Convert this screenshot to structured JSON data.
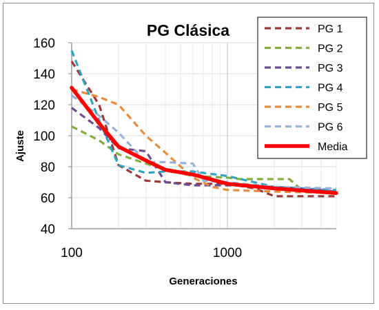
{
  "chart_data": {
    "type": "line",
    "title": "PG Clásica",
    "xlabel": "Generaciones",
    "ylabel": "Ajuste",
    "x_scale": "log",
    "xlim": [
      100,
      5000
    ],
    "ylim": [
      40,
      160
    ],
    "y_ticks": [
      40,
      60,
      80,
      100,
      120,
      140,
      160
    ],
    "x_ticks": [
      100,
      1000
    ],
    "x_tick_labels": [
      "100",
      "1000"
    ],
    "grid": true,
    "legend_position": "right",
    "series": [
      {
        "name": "PG 1",
        "color": "#9b3b38",
        "style": "dashed",
        "x": [
          100,
          150,
          200,
          300,
          400,
          600,
          1000,
          1500,
          2000,
          3000,
          5000
        ],
        "y": [
          148,
          120,
          81,
          71,
          70,
          69,
          69,
          66,
          61,
          61,
          61
        ]
      },
      {
        "name": "PG 2",
        "color": "#86ab3f",
        "style": "dashed",
        "x": [
          100,
          150,
          200,
          300,
          400,
          600,
          1000,
          1200,
          2000,
          2500,
          3000,
          5000
        ],
        "y": [
          106,
          97,
          88,
          82,
          78,
          74,
          73,
          72,
          72,
          72,
          65,
          64
        ]
      },
      {
        "name": "PG 3",
        "color": "#6a4c8f",
        "style": "dashed",
        "x": [
          100,
          150,
          200,
          300,
          400,
          600,
          1000,
          2000,
          3000,
          5000
        ],
        "y": [
          118,
          105,
          92,
          90,
          70,
          68,
          68,
          67,
          66,
          64
        ]
      },
      {
        "name": "PG 4",
        "color": "#33a3bf",
        "style": "dashed",
        "x": [
          100,
          150,
          200,
          300,
          400,
          600,
          700,
          1000,
          2000,
          5000
        ],
        "y": [
          155,
          110,
          81,
          76,
          77,
          77,
          76,
          74,
          67,
          65
        ]
      },
      {
        "name": "PG 5",
        "color": "#e68c3c",
        "style": "dashed",
        "x": [
          100,
          150,
          200,
          300,
          400,
          600,
          800,
          1000,
          2000,
          5000
        ],
        "y": [
          130,
          125,
          120,
          100,
          89,
          73,
          67,
          65,
          64,
          63
        ]
      },
      {
        "name": "PG 6",
        "color": "#98b0da",
        "style": "dashed",
        "x": [
          100,
          150,
          200,
          300,
          400,
          600,
          700,
          1000,
          2000,
          5000
        ],
        "y": [
          126,
          113,
          102,
          83,
          83,
          82,
          71,
          70,
          67,
          66
        ]
      },
      {
        "name": "Media",
        "color": "#ff0000",
        "style": "solid",
        "x": [
          100,
          150,
          200,
          300,
          400,
          600,
          1000,
          2000,
          5000
        ],
        "y": [
          131,
          108,
          93,
          84,
          78,
          75,
          69,
          66,
          63
        ]
      }
    ]
  }
}
